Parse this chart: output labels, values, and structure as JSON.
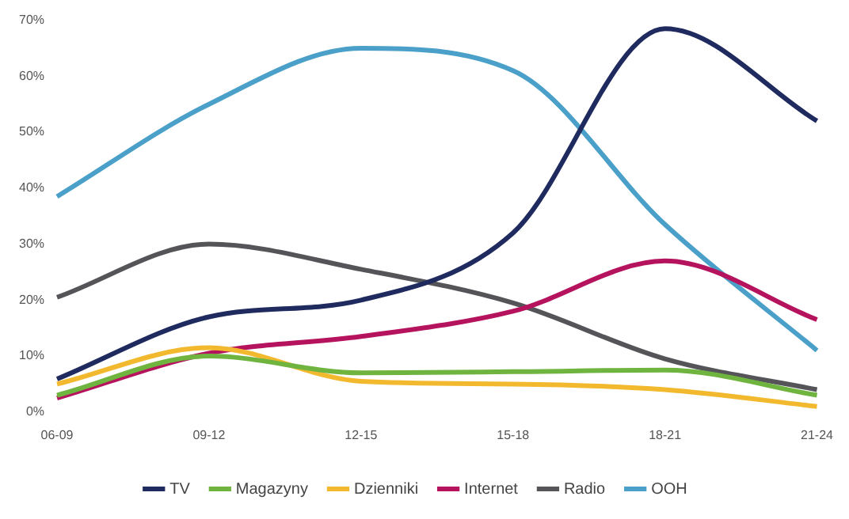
{
  "chart_data": {
    "type": "line",
    "categories": [
      "06-09",
      "09-12",
      "12-15",
      "15-18",
      "18-21",
      "21-24"
    ],
    "series": [
      {
        "name": "TV",
        "color": "#1f2a5e",
        "values": [
          5.9,
          17,
          20,
          32,
          68.5,
          52
        ]
      },
      {
        "name": "Magazyny",
        "color": "#6fb43f",
        "values": [
          3,
          10,
          7,
          7.2,
          7.5,
          3
        ]
      },
      {
        "name": "Dzienniki",
        "color": "#f2b92e",
        "values": [
          5,
          11.5,
          5.5,
          5,
          4,
          1
        ]
      },
      {
        "name": "Internet",
        "color": "#b5135d",
        "values": [
          2.5,
          10.5,
          13.5,
          18,
          27,
          16.5
        ]
      },
      {
        "name": "Radio",
        "color": "#555559",
        "values": [
          20.5,
          30,
          25.5,
          19.5,
          9.5,
          4
        ]
      },
      {
        "name": "OOH",
        "color": "#4aa0c8",
        "values": [
          38.5,
          55,
          65,
          61,
          33.5,
          11
        ]
      }
    ],
    "ylim": [
      0,
      70
    ],
    "yticks": [
      {
        "value": 0,
        "label": "0%"
      },
      {
        "value": 10,
        "label": "10%"
      },
      {
        "value": 20,
        "label": "20%"
      },
      {
        "value": 30,
        "label": "30%"
      },
      {
        "value": 40,
        "label": "40%"
      },
      {
        "value": 50,
        "label": "50%"
      },
      {
        "value": 60,
        "label": "60%"
      },
      {
        "value": 70,
        "label": "70%"
      }
    ],
    "grid": false,
    "legend": "bottom",
    "marker": "none",
    "line_style": "solid"
  }
}
